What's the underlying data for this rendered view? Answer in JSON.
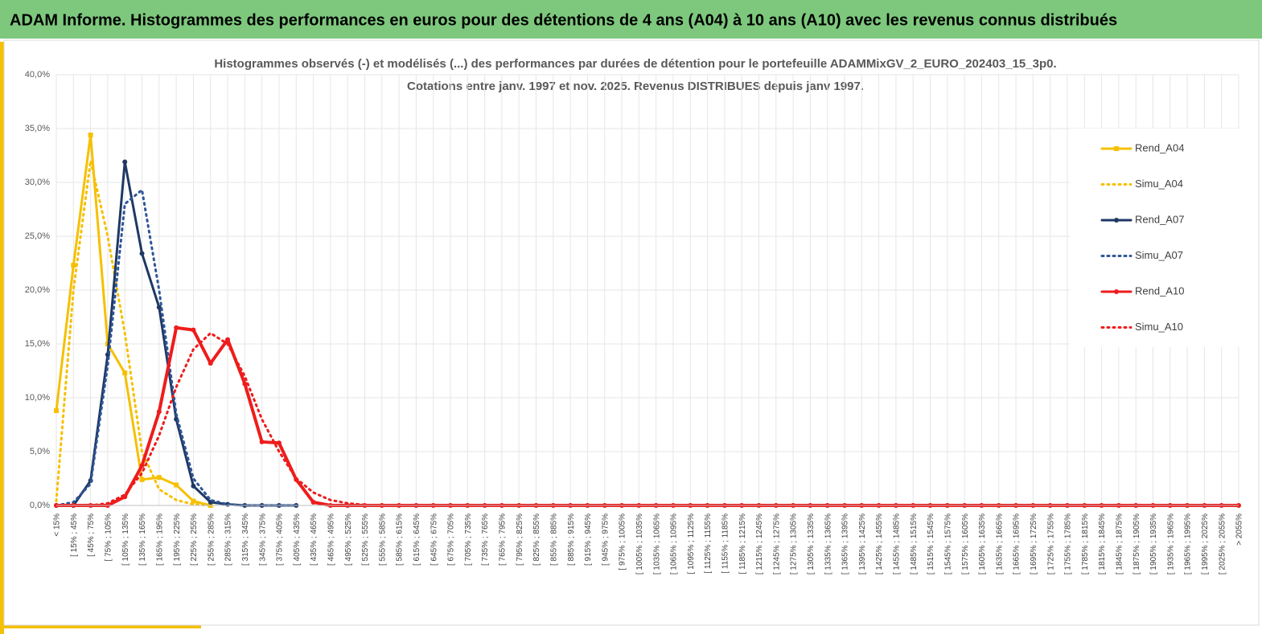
{
  "header": {
    "title": "ADAM Informe. Histogrammes des performances en euros pour des détentions de 4 ans (A04) à 10 ans (A10) avec les revenus connus distribués"
  },
  "chart_data": {
    "type": "line",
    "title": "Histogrammes observés (-) et modélisés (...) des performances par durées de détention pour le portefeuille ADAMMixGV_2_EURO_202403_15_3p0.",
    "subtitle": "Cotations entre janv. 1997 et nov. 2025. Revenus DISTRIBUES depuis janv 1997.",
    "categories": [
      "< 15%",
      "[ 15% ; 45%",
      "[ 45% ; 75%",
      "[ 75% ; 105%",
      "[ 105% ; 135%",
      "[ 135% ; 165%",
      "[ 165% ; 195%",
      "[ 195% ; 225%",
      "[ 225% ; 255%",
      "[ 255% ; 285%",
      "[ 285% ; 315%",
      "[ 315% ; 345%",
      "[ 345% ; 375%",
      "[ 375% ; 405%",
      "[ 405% ; 435%",
      "[ 435% ; 465%",
      "[ 465% ; 495%",
      "[ 495% ; 525%",
      "[ 525% ; 555%",
      "[ 555% ; 585%",
      "[ 585% ; 615%",
      "[ 615% ; 645%",
      "[ 645% ; 675%",
      "[ 675% ; 705%",
      "[ 705% ; 735%",
      "[ 735% ; 765%",
      "[ 765% ; 795%",
      "[ 795% ; 825%",
      "[ 825% ; 855%",
      "[ 855% ; 885%",
      "[ 885% ; 915%",
      "[ 915% ; 945%",
      "[ 945% ; 975%",
      "[ 975% ; 1005%",
      "[ 1005% ; 1035%",
      "[ 1035% ; 1065%",
      "[ 1065% ; 1095%",
      "[ 1095% ; 1125%",
      "[ 1125% ; 1155%",
      "[ 1155% ; 1185%",
      "[ 1185% ; 1215%",
      "[ 1215% ; 1245%",
      "[ 1245% ; 1275%",
      "[ 1275% ; 1305%",
      "[ 1305% ; 1335%",
      "[ 1335% ; 1365%",
      "[ 1365% ; 1395%",
      "[ 1395% ; 1425%",
      "[ 1425% ; 1455%",
      "[ 1455% ; 1485%",
      "[ 1485% ; 1515%",
      "[ 1515% ; 1545%",
      "[ 1545% ; 1575%",
      "[ 1575% ; 1605%",
      "[ 1605% ; 1635%",
      "[ 1635% ; 1665%",
      "[ 1665% ; 1695%",
      "[ 1695% ; 1725%",
      "[ 1725% ; 1755%",
      "[ 1755% ; 1785%",
      "[ 1785% ; 1815%",
      "[ 1815% ; 1845%",
      "[ 1845% ; 1875%",
      "[ 1875% ; 1905%",
      "[ 1905% ; 1935%",
      "[ 1935% ; 1965%",
      "[ 1965% ; 1995%",
      "[ 1995% ; 2025%",
      "[ 2025% ; 2055%",
      "> 2055%"
    ],
    "ylim": [
      0,
      40
    ],
    "yticks": [
      {
        "value": 0,
        "label": "0,0%"
      },
      {
        "value": 5,
        "label": "5,0%"
      },
      {
        "value": 10,
        "label": "10,0%"
      },
      {
        "value": 15,
        "label": "15,0%"
      },
      {
        "value": 20,
        "label": "20,0%"
      },
      {
        "value": 25,
        "label": "25,0%"
      },
      {
        "value": 30,
        "label": "30,0%"
      },
      {
        "value": 35,
        "label": "35,0%"
      },
      {
        "value": 40,
        "label": "40,0%"
      }
    ],
    "grid": true,
    "legend": "right",
    "series": [
      {
        "name": "Rend_A04",
        "color": "#f5c000",
        "style": "solid",
        "marker": "square",
        "values": [
          8.8,
          22.3,
          34.4,
          15.0,
          12.3,
          2.4,
          2.6,
          1.9,
          0.4,
          0.0,
          null,
          null,
          null,
          null,
          null,
          null,
          null,
          null,
          null,
          null,
          null,
          null,
          null,
          null,
          null,
          null,
          null,
          null,
          null,
          null,
          null,
          null,
          null,
          null,
          null,
          null,
          null,
          null,
          null,
          null,
          null,
          null,
          null,
          null,
          null,
          null,
          null,
          null,
          null,
          null,
          null,
          null,
          null,
          null,
          null,
          null,
          null,
          null,
          null,
          null,
          null,
          null,
          null,
          null,
          null,
          null,
          null,
          null,
          null,
          null
        ]
      },
      {
        "name": "Simu_A04",
        "color": "#f5c000",
        "style": "dotted",
        "marker": "none",
        "values": [
          0.4,
          20.0,
          32.0,
          25.0,
          16.0,
          5.0,
          1.5,
          0.5,
          0.1,
          0.0,
          null,
          null,
          null,
          null,
          null,
          null,
          null,
          null,
          null,
          null,
          null,
          null,
          null,
          null,
          null,
          null,
          null,
          null,
          null,
          null,
          null,
          null,
          null,
          null,
          null,
          null,
          null,
          null,
          null,
          null,
          null,
          null,
          null,
          null,
          null,
          null,
          null,
          null,
          null,
          null,
          null,
          null,
          null,
          null,
          null,
          null,
          null,
          null,
          null,
          null,
          null,
          null,
          null,
          null,
          null,
          null,
          null,
          null,
          null,
          null
        ]
      },
      {
        "name": "Rend_A07",
        "color": "#1f3864",
        "style": "solid",
        "marker": "circle",
        "values": [
          0.0,
          0.0,
          2.3,
          14.0,
          31.9,
          23.4,
          18.4,
          8.0,
          1.8,
          0.3,
          0.1,
          0.0,
          0.0,
          0.0,
          0.0,
          null,
          null,
          null,
          null,
          null,
          null,
          null,
          null,
          null,
          null,
          null,
          null,
          null,
          null,
          null,
          null,
          null,
          null,
          null,
          null,
          null,
          null,
          null,
          null,
          null,
          null,
          null,
          null,
          null,
          null,
          null,
          null,
          null,
          null,
          null,
          null,
          null,
          null,
          null,
          null,
          null,
          null,
          null,
          null,
          null,
          null,
          null,
          null,
          null,
          null,
          null,
          null,
          null,
          null,
          null
        ]
      },
      {
        "name": "Simu_A07",
        "color": "#2e5597",
        "style": "dotted",
        "marker": "none",
        "values": [
          0.0,
          0.3,
          2.0,
          13.0,
          28.0,
          29.3,
          20.0,
          8.5,
          2.5,
          0.5,
          0.1,
          0.0,
          0.0,
          0.0,
          0.0,
          null,
          null,
          null,
          null,
          null,
          null,
          null,
          null,
          null,
          null,
          null,
          null,
          null,
          null,
          null,
          null,
          null,
          null,
          null,
          null,
          null,
          null,
          null,
          null,
          null,
          null,
          null,
          null,
          null,
          null,
          null,
          null,
          null,
          null,
          null,
          null,
          null,
          null,
          null,
          null,
          null,
          null,
          null,
          null,
          null,
          null,
          null,
          null,
          null,
          null,
          null,
          null,
          null,
          null,
          null
        ]
      },
      {
        "name": "Rend_A10",
        "color": "#ee1c1c",
        "style": "solid",
        "marker": "circle",
        "values": [
          0.0,
          0.0,
          0.0,
          0.0,
          0.8,
          3.7,
          8.7,
          16.5,
          16.3,
          13.2,
          15.4,
          11.3,
          5.9,
          5.8,
          2.4,
          0.3,
          0.0,
          0.0,
          0.0,
          0.0,
          0.0,
          0.0,
          0.0,
          0.0,
          0.0,
          0.0,
          0.0,
          0.0,
          0.0,
          0.0,
          0.0,
          0.0,
          0.0,
          0.0,
          0.0,
          0.0,
          0.0,
          0.0,
          0.0,
          0.0,
          0.0,
          0.0,
          0.0,
          0.0,
          0.0,
          0.0,
          0.0,
          0.0,
          0.0,
          0.0,
          0.0,
          0.0,
          0.0,
          0.0,
          0.0,
          0.0,
          0.0,
          0.0,
          0.0,
          0.0,
          0.0,
          0.0,
          0.0,
          0.0,
          0.0,
          0.0,
          0.0,
          0.0,
          0.0,
          0.0
        ]
      },
      {
        "name": "Simu_A10",
        "color": "#ee1c1c",
        "style": "dotted",
        "marker": "none",
        "values": [
          0.0,
          0.0,
          0.0,
          0.2,
          1.0,
          3.0,
          6.5,
          11.0,
          14.5,
          16.0,
          15.0,
          12.0,
          8.0,
          5.0,
          2.5,
          1.2,
          0.5,
          0.2,
          0.05,
          0.0,
          0.0,
          0.0,
          0.0,
          0.0,
          0.0,
          0.0,
          0.0,
          0.0,
          0.0,
          0.0,
          0.0,
          0.0,
          0.0,
          0.0,
          0.0,
          0.0,
          0.0,
          0.0,
          0.0,
          0.0,
          0.0,
          0.0,
          0.0,
          0.0,
          0.0,
          0.0,
          0.0,
          0.0,
          0.0,
          0.0,
          0.0,
          0.0,
          0.0,
          0.0,
          0.0,
          0.0,
          0.0,
          0.0,
          0.0,
          0.0,
          0.0,
          0.0,
          0.0,
          0.0,
          0.0,
          0.0,
          0.0,
          0.0,
          0.0,
          0.0
        ]
      }
    ]
  }
}
